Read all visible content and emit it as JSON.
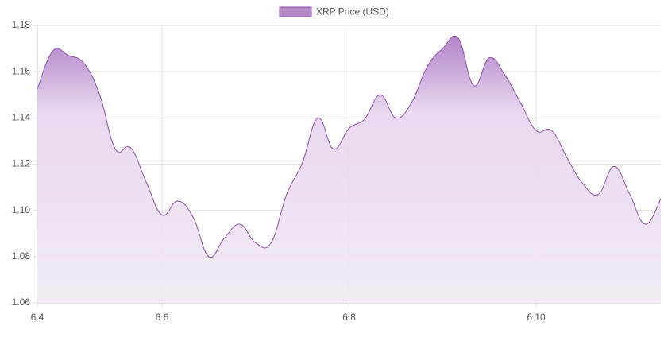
{
  "chart_data": {
    "type": "area",
    "legend_position": "top",
    "categories": [
      "6 4",
      null,
      null,
      null,
      null,
      null,
      null,
      null,
      "6 6",
      null,
      null,
      null,
      null,
      null,
      null,
      null,
      null,
      null,
      null,
      null,
      "6 8",
      null,
      null,
      null,
      null,
      null,
      null,
      null,
      null,
      null,
      null,
      null,
      "6 10",
      null,
      null,
      null,
      null,
      null,
      null,
      null,
      null
    ],
    "series": [
      {
        "name": "XRP Price (USD)",
        "color": "#8e4fa8",
        "values": [
          1.1525,
          1.169,
          1.167,
          1.1635,
          1.15,
          1.1265,
          1.127,
          1.112,
          1.098,
          1.104,
          1.097,
          1.08,
          1.088,
          1.094,
          1.086,
          1.086,
          1.107,
          1.1205,
          1.14,
          1.1265,
          1.1355,
          1.1395,
          1.15,
          1.14,
          1.1465,
          1.162,
          1.17,
          1.1745,
          1.154,
          1.166,
          1.1585,
          1.1465,
          1.1345,
          1.1345,
          1.1225,
          1.1115,
          1.107,
          1.119,
          1.107,
          1.094,
          1.105
        ]
      }
    ],
    "ylim": [
      1.06,
      1.18
    ],
    "yticks": [
      1.06,
      1.08,
      {
        "value": 1.1,
        "label": "1.10"
      },
      1.12,
      1.14,
      1.16,
      1.18
    ],
    "grid": true
  }
}
